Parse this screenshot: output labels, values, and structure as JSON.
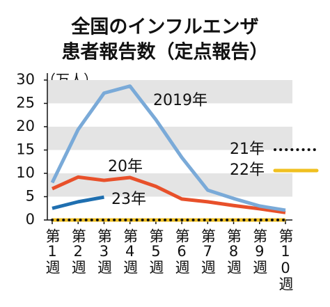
{
  "chart_data": {
    "type": "line",
    "title": [
      "全国のインフルエンザ",
      "患者報告数（定点報告）"
    ],
    "y_label": "（万人）",
    "categories": [
      "第1週",
      "第2週",
      "第3週",
      "第4週",
      "第5週",
      "第6週",
      "第7週",
      "第8週",
      "第9週",
      "第10週"
    ],
    "series": [
      {
        "name": "2019年",
        "color": "#7aaad8",
        "values": [
          8,
          19.4,
          27.2,
          28.7,
          21.5,
          13.4,
          6.4,
          4.6,
          3,
          2.1
        ]
      },
      {
        "name": "20年",
        "color": "#e8502a",
        "values": [
          6.7,
          9.2,
          8.5,
          9.1,
          7.2,
          4.5,
          3.9,
          3.1,
          2.4,
          1.6
        ]
      },
      {
        "name": "21年",
        "color": "#111111",
        "dash": "dotted",
        "values": [
          0,
          0,
          0,
          0,
          0,
          0,
          0,
          0,
          0,
          0
        ]
      },
      {
        "name": "22年",
        "color": "#f0c020",
        "values": [
          0,
          0,
          0,
          0,
          0,
          0,
          0,
          0,
          0,
          0
        ]
      },
      {
        "name": "23年",
        "color": "#1f6fb0",
        "values": [
          2.5,
          3.9,
          4.9,
          null,
          null,
          null,
          null,
          null,
          null,
          null
        ]
      }
    ],
    "ylim": [
      0,
      30
    ],
    "yticks": [
      0,
      5,
      10,
      15,
      20,
      25,
      30
    ],
    "grid": "bands"
  }
}
